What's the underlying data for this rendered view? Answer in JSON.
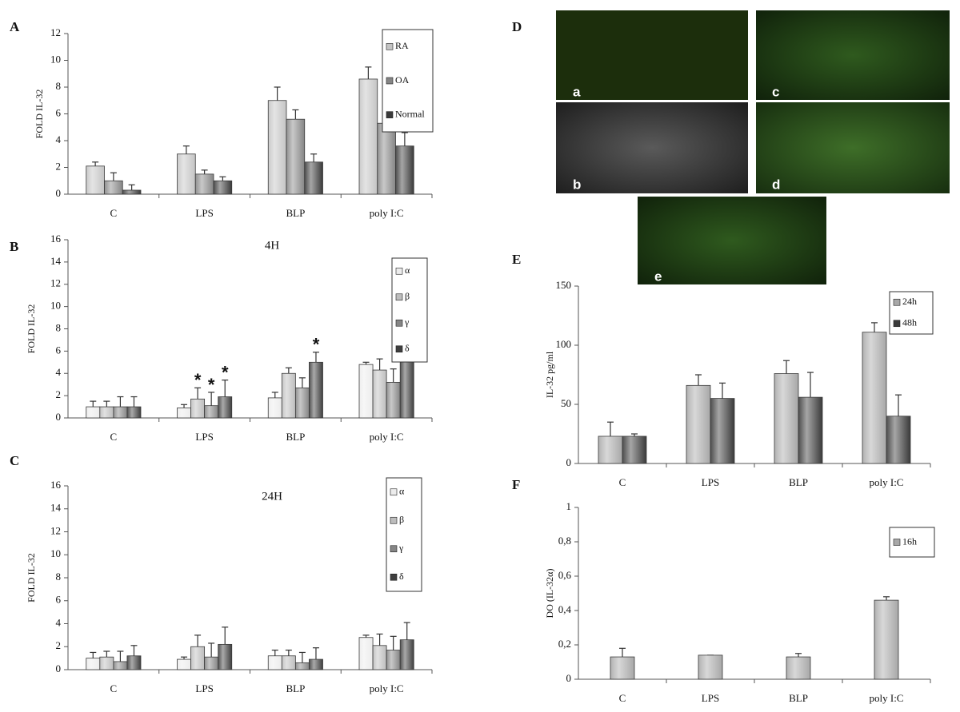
{
  "figure": {
    "panel_letters": [
      "A",
      "B",
      "C",
      "D",
      "E",
      "F"
    ],
    "image_labels": [
      "a",
      "b",
      "c",
      "d",
      "e"
    ]
  },
  "chart_data": [
    {
      "type": "bar",
      "ylabel": "FOLD IL-32",
      "categories": [
        "C",
        "LPS",
        "BLP",
        "poly I:C"
      ],
      "ylim": [
        0,
        12
      ],
      "yticks": [
        0,
        2,
        4,
        6,
        8,
        10,
        12
      ],
      "legend": "upper right",
      "series": [
        {
          "name": "RA",
          "color": "#c4c4c4",
          "values": [
            2.1,
            3.0,
            7.0,
            8.6
          ],
          "errors": [
            0.3,
            0.6,
            1.0,
            0.9
          ]
        },
        {
          "name": "OA",
          "color": "#858585",
          "values": [
            1.0,
            1.5,
            5.6,
            5.3
          ],
          "errors": [
            0.6,
            0.3,
            0.7,
            0.3
          ]
        },
        {
          "name": "Normal",
          "color": "#3a3a3a",
          "values": [
            0.3,
            1.0,
            2.4,
            3.6
          ],
          "errors": [
            0.4,
            0.3,
            0.6,
            1.0
          ]
        }
      ]
    },
    {
      "type": "bar",
      "title": "4H",
      "ylabel": "FOLD IL-32",
      "categories": [
        "C",
        "LPS",
        "BLP",
        "poly I:C"
      ],
      "ylim": [
        0,
        16
      ],
      "yticks": [
        0,
        2,
        4,
        6,
        8,
        10,
        12,
        14,
        16
      ],
      "legend": "upper right",
      "series": [
        {
          "name": "α",
          "color": "#ececec",
          "values": [
            1.0,
            0.9,
            1.8,
            4.8
          ],
          "errors": [
            0.5,
            0.3,
            0.5,
            0.2
          ],
          "annotations": [
            null,
            null,
            null,
            null
          ]
        },
        {
          "name": "β",
          "color": "#bdbdbd",
          "values": [
            1.0,
            1.7,
            4.0,
            4.3
          ],
          "errors": [
            0.5,
            1.0,
            0.5,
            1.0
          ],
          "annotations": [
            null,
            "*",
            null,
            null
          ]
        },
        {
          "name": "γ",
          "color": "#858585",
          "values": [
            1.0,
            1.1,
            2.7,
            3.2
          ],
          "errors": [
            0.9,
            1.2,
            0.9,
            1.2
          ],
          "annotations": [
            null,
            "*",
            null,
            null
          ]
        },
        {
          "name": "δ",
          "color": "#3f3f3f",
          "values": [
            1.0,
            1.9,
            5.0,
            7.0
          ],
          "errors": [
            0.9,
            1.5,
            0.9,
            1.5
          ],
          "annotations": [
            null,
            "*",
            "*",
            null
          ]
        }
      ]
    },
    {
      "type": "bar",
      "title": "24H",
      "ylabel": "FOLD IL-32",
      "categories": [
        "C",
        "LPS",
        "BLP",
        "poly I:C"
      ],
      "ylim": [
        0,
        16
      ],
      "yticks": [
        0,
        2,
        4,
        6,
        8,
        10,
        12,
        14,
        16
      ],
      "legend": "upper right",
      "series": [
        {
          "name": "α",
          "color": "#ececec",
          "values": [
            1.0,
            0.9,
            1.2,
            2.8
          ],
          "errors": [
            0.5,
            0.2,
            0.5,
            0.2
          ]
        },
        {
          "name": "β",
          "color": "#bdbdbd",
          "values": [
            1.1,
            2.0,
            1.2,
            2.1
          ],
          "errors": [
            0.5,
            1.0,
            0.5,
            1.0
          ]
        },
        {
          "name": "γ",
          "color": "#858585",
          "values": [
            0.7,
            1.1,
            0.6,
            1.7
          ],
          "errors": [
            0.9,
            1.2,
            0.9,
            1.2
          ]
        },
        {
          "name": "δ",
          "color": "#3f3f3f",
          "values": [
            1.2,
            2.2,
            0.9,
            2.6
          ],
          "errors": [
            0.9,
            1.5,
            1.0,
            1.5
          ]
        }
      ]
    },
    {
      "type": "bar",
      "ylabel": "IL-32 pg/ml",
      "categories": [
        "C",
        "LPS",
        "BLP",
        "poly I:C"
      ],
      "ylim": [
        0,
        150
      ],
      "yticks": [
        0,
        50,
        100,
        150
      ],
      "legend": "upper right",
      "series": [
        {
          "name": "24h",
          "color": "#a8a8a8",
          "values": [
            23,
            66,
            76,
            111
          ],
          "errors": [
            12,
            9,
            11,
            8
          ]
        },
        {
          "name": "48h",
          "color": "#3a3a3a",
          "values": [
            23,
            55,
            56,
            40
          ],
          "errors": [
            2,
            13,
            21,
            18
          ]
        }
      ]
    },
    {
      "type": "bar",
      "ylabel": "DO (IL-32α)",
      "categories": [
        "C",
        "LPS",
        "BLP",
        "poly I:C"
      ],
      "ylim": [
        0,
        1
      ],
      "yticks": [
        0,
        {
          "value": 0.2,
          "label": "0,2"
        },
        {
          "value": 0.4,
          "label": "0,4"
        },
        {
          "value": 0.6,
          "label": "0,6"
        },
        {
          "value": 0.8,
          "label": "0,8"
        },
        1
      ],
      "legend": "upper right",
      "series": [
        {
          "name": "16h",
          "color": "#a8a8a8",
          "values": [
            0.13,
            0.14,
            0.13,
            0.46
          ],
          "errors": [
            0.05,
            0,
            0.02,
            0.02
          ]
        }
      ]
    }
  ]
}
